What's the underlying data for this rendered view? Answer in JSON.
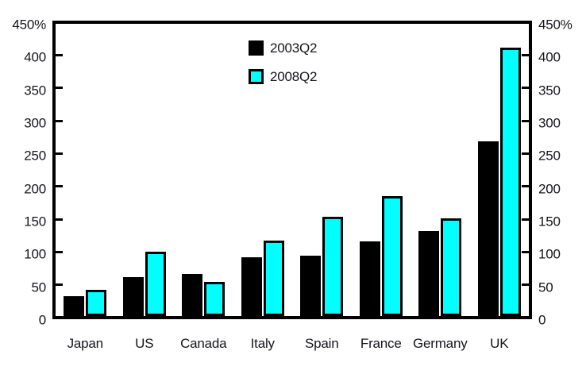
{
  "chart_data": {
    "type": "bar",
    "title": "",
    "categories": [
      "Japan",
      "US",
      "Canada",
      "Italy",
      "Spain",
      "France",
      "Germany",
      "UK"
    ],
    "series": [
      {
        "name": "2003Q2",
        "color": "#000000",
        "values": [
          30,
          60,
          65,
          90,
          93,
          114,
          130,
          267
        ]
      },
      {
        "name": "2008Q2",
        "color": "#00ffff",
        "values": [
          40,
          98,
          52,
          115,
          152,
          184,
          150,
          411
        ]
      }
    ],
    "ylim": [
      0,
      450
    ],
    "yticks": [
      {
        "value": 0,
        "label": "0"
      },
      {
        "value": 50,
        "label": "50"
      },
      {
        "value": 100,
        "label": "100"
      },
      {
        "value": 150,
        "label": "150"
      },
      {
        "value": 200,
        "label": "200"
      },
      {
        "value": 250,
        "label": "250"
      },
      {
        "value": 300,
        "label": "300"
      },
      {
        "value": 350,
        "label": "350"
      },
      {
        "value": 400,
        "label": "400"
      },
      {
        "value": 450,
        "label": "450%"
      }
    ],
    "unit": "%",
    "axes": {
      "left": true,
      "right": true,
      "frame": true
    },
    "grid": false,
    "legend_position": "top-center"
  },
  "colors": {
    "background": "#ffffff",
    "axis": "#000000",
    "text": "#15151c",
    "series_2003q2": "#000000",
    "series_2008q2": "#00ffff"
  }
}
